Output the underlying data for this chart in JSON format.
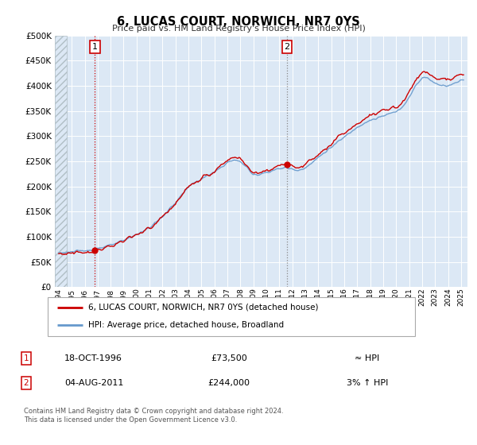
{
  "title": "6, LUCAS COURT, NORWICH, NR7 0YS",
  "subtitle": "Price paid vs. HM Land Registry's House Price Index (HPI)",
  "legend_line1": "6, LUCAS COURT, NORWICH, NR7 0YS (detached house)",
  "legend_line2": "HPI: Average price, detached house, Broadland",
  "annotation1_date": "18-OCT-1996",
  "annotation1_price": "£73,500",
  "annotation1_hpi": "≈ HPI",
  "annotation2_date": "04-AUG-2011",
  "annotation2_price": "£244,000",
  "annotation2_hpi": "3% ↑ HPI",
  "footer1": "Contains HM Land Registry data © Crown copyright and database right 2024.",
  "footer2": "This data is licensed under the Open Government Licence v3.0.",
  "price_color": "#cc0000",
  "hpi_color": "#6699cc",
  "plot_bg_color": "#dce8f5",
  "ann_box_edgecolor": "#cc0000",
  "vline1_color": "#cc0000",
  "vline2_color": "#888888",
  "ylim": [
    0,
    500000
  ],
  "xlim_start": 1993.7,
  "xlim_end": 2025.5,
  "marker1_x": 1996.79,
  "marker1_y": 73500,
  "marker2_x": 2011.59,
  "marker2_y": 244000,
  "vline1_x": 1996.79,
  "vline2_x": 2011.59,
  "hatch_end": 1994.6
}
